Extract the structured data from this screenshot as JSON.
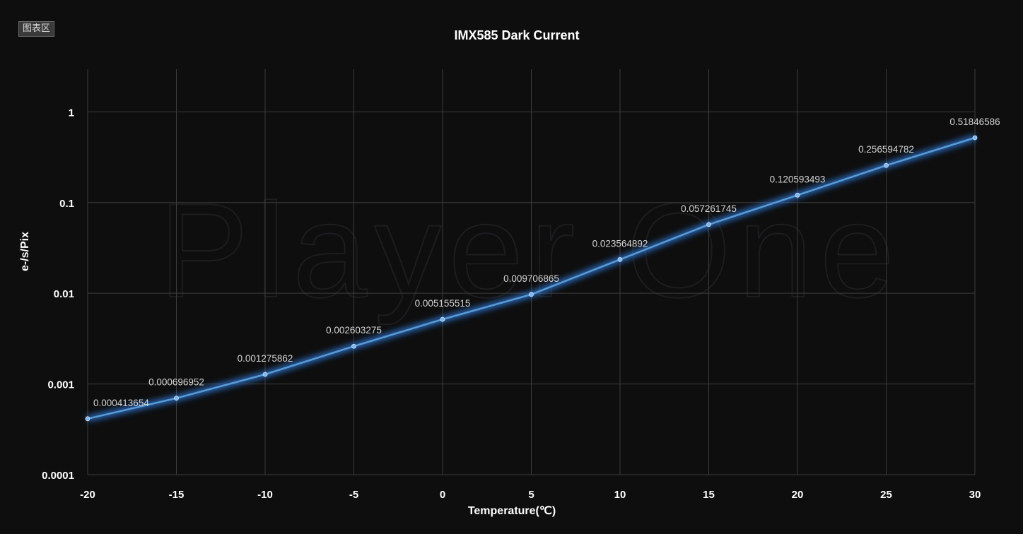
{
  "region_tag": "图表区",
  "watermark": "Player One",
  "colors": {
    "background": "#0e0e0f",
    "line": "#5b9bd5",
    "glow": "#2e7de0",
    "grid": "#3c3c3c",
    "text": "#ffffff"
  },
  "chart_data": {
    "type": "line",
    "title": "IMX585 Dark Current",
    "xlabel": "Temperature(℃)",
    "ylabel": "e-/s/Pix",
    "y_scale": "log",
    "grid": true,
    "legend": "none",
    "xlim": [
      -20,
      30
    ],
    "ylim": [
      0.0001,
      1
    ],
    "x_ticks": [
      "-20",
      "-15",
      "-10",
      "-5",
      "0",
      "5",
      "10",
      "15",
      "20",
      "25",
      "30"
    ],
    "y_ticks": [
      "1",
      "0.1",
      "0.01",
      "0.001",
      "0.0001"
    ],
    "series": [
      {
        "x": [
          -20,
          -15,
          -10,
          -5,
          0,
          5,
          10,
          15,
          20,
          25,
          30
        ],
        "values": [
          0.000413654,
          0.000696952,
          0.001275862,
          0.002603275,
          0.005155515,
          0.009706865,
          0.023564892,
          0.057261745,
          0.120593493,
          0.256594782,
          0.51846586
        ],
        "labels": [
          "0.000413654",
          "0.000696952",
          "0.001275862",
          "0.002603275",
          "0.005155515",
          "0.009706865",
          "0.023564892",
          "0.057261745",
          "0.120593493",
          "0.256594782",
          "0.51846586"
        ]
      }
    ]
  }
}
